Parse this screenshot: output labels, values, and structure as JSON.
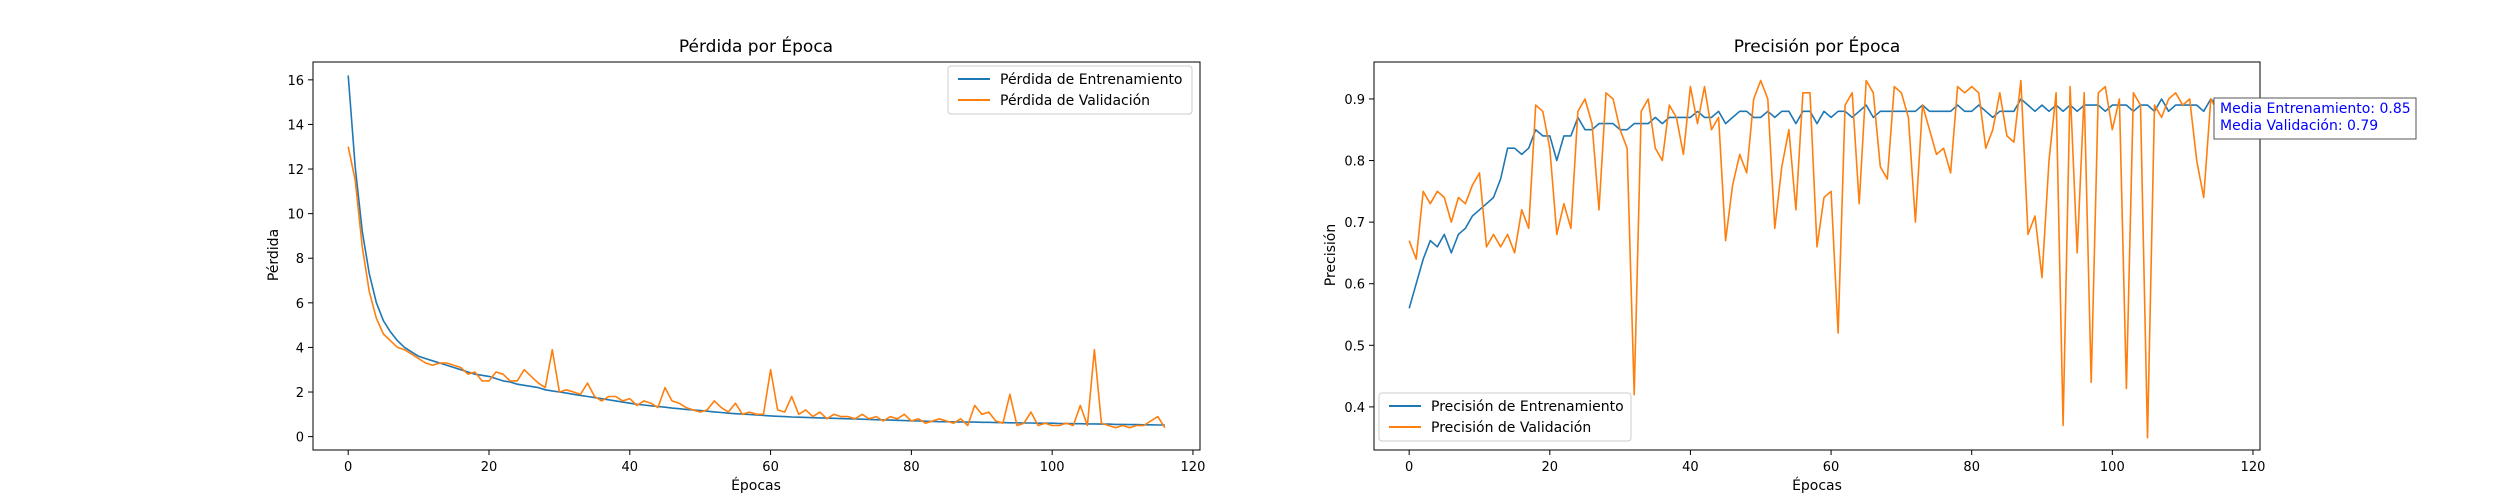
{
  "colors": {
    "train": "#1f77b4",
    "val": "#ff7f0e",
    "annotation": "#0000ff"
  },
  "chart_data": [
    {
      "type": "line",
      "title": "Pérdida por Época",
      "xlabel": "Épocas",
      "ylabel": "Pérdida",
      "xlim": [
        -5,
        121
      ],
      "ylim": [
        -0.6,
        16.8
      ],
      "xticks": [
        0,
        20,
        40,
        60,
        80,
        100,
        120
      ],
      "yticks": [
        0,
        2,
        4,
        6,
        8,
        10,
        12,
        14,
        16
      ],
      "xtick_labels": [
        "0",
        "20",
        "40",
        "60",
        "80",
        "100",
        "120"
      ],
      "ytick_labels": [
        "0",
        "2",
        "4",
        "6",
        "8",
        "10",
        "12",
        "14",
        "16"
      ],
      "grid": false,
      "legend_position": "top-right",
      "series": [
        {
          "name": "Pérdida de Entrenamiento",
          "color": "#1f77b4",
          "values": [
            16.2,
            12.1,
            9.2,
            7.3,
            6.0,
            5.2,
            4.7,
            4.3,
            4.0,
            3.8,
            3.6,
            3.5,
            3.4,
            3.3,
            3.2,
            3.1,
            3.0,
            2.9,
            2.8,
            2.75,
            2.7,
            2.6,
            2.5,
            2.45,
            2.35,
            2.3,
            2.25,
            2.2,
            2.1,
            2.05,
            2.0,
            1.95,
            1.9,
            1.85,
            1.8,
            1.75,
            1.7,
            1.65,
            1.6,
            1.55,
            1.5,
            1.45,
            1.42,
            1.38,
            1.35,
            1.32,
            1.28,
            1.25,
            1.22,
            1.2,
            1.17,
            1.14,
            1.11,
            1.08,
            1.05,
            1.03,
            1.01,
            0.99,
            0.97,
            0.95,
            0.93,
            0.91,
            0.9,
            0.88,
            0.87,
            0.86,
            0.85,
            0.84,
            0.83,
            0.82,
            0.81,
            0.8,
            0.79,
            0.78,
            0.77,
            0.76,
            0.75,
            0.74,
            0.73,
            0.72,
            0.71,
            0.7,
            0.69,
            0.68,
            0.67,
            0.67,
            0.66,
            0.66,
            0.65,
            0.65,
            0.64,
            0.64,
            0.63,
            0.63,
            0.62,
            0.62,
            0.61,
            0.61,
            0.6,
            0.6,
            0.6,
            0.59,
            0.59,
            0.58,
            0.58,
            0.57,
            0.57,
            0.56,
            0.56,
            0.55,
            0.55,
            0.54,
            0.54,
            0.53,
            0.53,
            0.52,
            0.52
          ]
        },
        {
          "name": "Pérdida de Validación",
          "color": "#ff7f0e",
          "values": [
            13.0,
            11.5,
            8.5,
            6.5,
            5.3,
            4.6,
            4.3,
            4.0,
            3.9,
            3.7,
            3.5,
            3.3,
            3.2,
            3.3,
            3.3,
            3.2,
            3.1,
            2.8,
            2.9,
            2.5,
            2.5,
            2.9,
            2.8,
            2.5,
            2.5,
            3.0,
            2.7,
            2.4,
            2.2,
            3.9,
            2.0,
            2.1,
            2.0,
            1.9,
            2.4,
            1.8,
            1.6,
            1.8,
            1.8,
            1.6,
            1.7,
            1.4,
            1.6,
            1.5,
            1.3,
            2.2,
            1.6,
            1.5,
            1.3,
            1.2,
            1.1,
            1.2,
            1.6,
            1.3,
            1.1,
            1.5,
            1.0,
            1.1,
            1.0,
            1.0,
            3.0,
            1.2,
            1.1,
            1.8,
            1.0,
            1.2,
            0.9,
            1.1,
            0.8,
            1.0,
            0.9,
            0.9,
            0.8,
            1.0,
            0.8,
            0.9,
            0.7,
            0.9,
            0.8,
            1.0,
            0.7,
            0.8,
            0.6,
            0.7,
            0.8,
            0.7,
            0.6,
            0.8,
            0.5,
            1.4,
            1.0,
            1.1,
            0.7,
            0.6,
            1.9,
            0.5,
            0.6,
            1.1,
            0.5,
            0.6,
            0.5,
            0.5,
            0.6,
            0.5,
            1.4,
            0.5,
            3.9,
            0.6,
            0.5,
            0.4,
            0.5,
            0.4,
            0.5,
            0.5,
            0.7,
            0.9,
            0.4
          ]
        }
      ]
    },
    {
      "type": "line",
      "title": "Precisión por Época",
      "xlabel": "Épocas",
      "ylabel": "Precisión",
      "xlim": [
        -5,
        121
      ],
      "ylim": [
        0.33,
        0.96
      ],
      "xticks": [
        0,
        20,
        40,
        60,
        80,
        100,
        120
      ],
      "yticks": [
        0.4,
        0.5,
        0.6,
        0.7,
        0.8,
        0.9
      ],
      "xtick_labels": [
        "0",
        "20",
        "40",
        "60",
        "80",
        "100",
        "120"
      ],
      "ytick_labels": [
        "0.4",
        "0.5",
        "0.6",
        "0.7",
        "0.8",
        "0.9"
      ],
      "grid": false,
      "legend_position": "bottom-left",
      "annotation": {
        "lines": [
          "Media Entrenamiento: 0.85",
          "Media Validación: 0.79"
        ],
        "position": "right, outside plot near top"
      },
      "series": [
        {
          "name": "Precisión de Entrenamiento",
          "color": "#1f77b4",
          "values": [
            0.56,
            0.6,
            0.64,
            0.67,
            0.66,
            0.68,
            0.65,
            0.68,
            0.69,
            0.71,
            0.72,
            0.73,
            0.74,
            0.77,
            0.82,
            0.82,
            0.81,
            0.82,
            0.85,
            0.84,
            0.84,
            0.8,
            0.84,
            0.84,
            0.87,
            0.85,
            0.85,
            0.86,
            0.86,
            0.86,
            0.85,
            0.85,
            0.86,
            0.86,
            0.86,
            0.87,
            0.86,
            0.87,
            0.87,
            0.87,
            0.87,
            0.88,
            0.87,
            0.87,
            0.88,
            0.86,
            0.87,
            0.88,
            0.88,
            0.87,
            0.87,
            0.88,
            0.87,
            0.88,
            0.88,
            0.86,
            0.88,
            0.88,
            0.86,
            0.88,
            0.87,
            0.88,
            0.88,
            0.87,
            0.88,
            0.89,
            0.87,
            0.88,
            0.88,
            0.88,
            0.88,
            0.88,
            0.88,
            0.89,
            0.88,
            0.88,
            0.88,
            0.88,
            0.89,
            0.88,
            0.88,
            0.89,
            0.88,
            0.87,
            0.88,
            0.88,
            0.88,
            0.9,
            0.89,
            0.88,
            0.89,
            0.88,
            0.89,
            0.88,
            0.89,
            0.88,
            0.89,
            0.89,
            0.89,
            0.88,
            0.89,
            0.89,
            0.89,
            0.88,
            0.89,
            0.89,
            0.88,
            0.9,
            0.88,
            0.89,
            0.89,
            0.89,
            0.89,
            0.88,
            0.9,
            0.89,
            0.89
          ]
        },
        {
          "name": "Precisión de Validación",
          "color": "#ff7f0e",
          "values": [
            0.67,
            0.64,
            0.75,
            0.73,
            0.75,
            0.74,
            0.7,
            0.74,
            0.73,
            0.76,
            0.78,
            0.66,
            0.68,
            0.66,
            0.68,
            0.65,
            0.72,
            0.69,
            0.89,
            0.88,
            0.82,
            0.68,
            0.73,
            0.69,
            0.88,
            0.9,
            0.86,
            0.72,
            0.91,
            0.9,
            0.85,
            0.82,
            0.42,
            0.88,
            0.9,
            0.82,
            0.8,
            0.89,
            0.87,
            0.81,
            0.92,
            0.86,
            0.92,
            0.85,
            0.87,
            0.67,
            0.76,
            0.81,
            0.78,
            0.9,
            0.93,
            0.9,
            0.69,
            0.79,
            0.85,
            0.72,
            0.91,
            0.91,
            0.66,
            0.74,
            0.75,
            0.52,
            0.89,
            0.91,
            0.73,
            0.93,
            0.91,
            0.79,
            0.77,
            0.92,
            0.91,
            0.87,
            0.7,
            0.89,
            0.85,
            0.81,
            0.82,
            0.78,
            0.92,
            0.91,
            0.92,
            0.91,
            0.82,
            0.85,
            0.91,
            0.84,
            0.83,
            0.93,
            0.68,
            0.71,
            0.61,
            0.8,
            0.91,
            0.37,
            0.92,
            0.65,
            0.91,
            0.44,
            0.91,
            0.92,
            0.85,
            0.9,
            0.43,
            0.91,
            0.89,
            0.35,
            0.89,
            0.87,
            0.9,
            0.91,
            0.89,
            0.9,
            0.8,
            0.74,
            0.9,
            0.88,
            0.9
          ]
        }
      ]
    }
  ]
}
